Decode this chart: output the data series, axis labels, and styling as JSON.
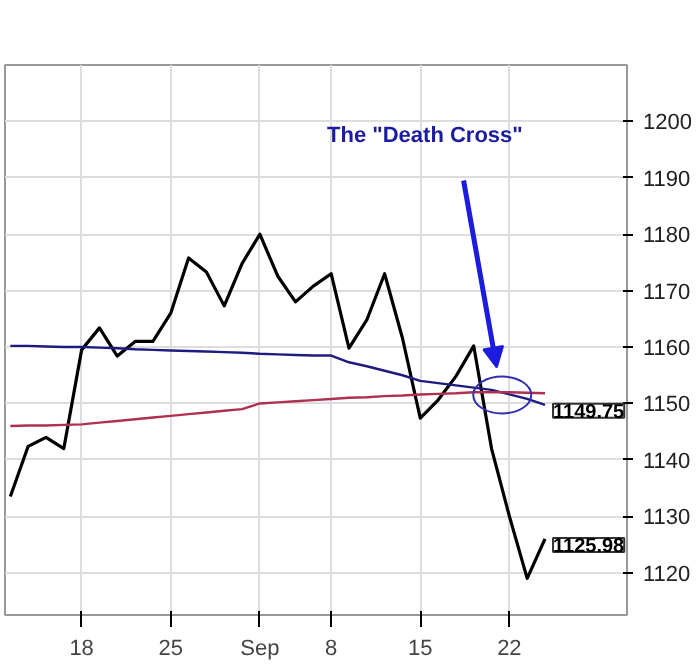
{
  "chart_data": {
    "type": "line",
    "categories": [
      null,
      null,
      null,
      null,
      "18",
      null,
      null,
      null,
      null,
      "25",
      null,
      null,
      null,
      null,
      "Sep",
      null,
      null,
      null,
      "8",
      null,
      null,
      null,
      null,
      "15",
      null,
      null,
      null,
      null,
      "22",
      null,
      null
    ],
    "series": [
      {
        "color": "#000000",
        "values": [
          1133.5,
          1142.4,
          1144,
          1142,
          1159.5,
          1163.4,
          1158.4,
          1161,
          1161,
          1166,
          1175.8,
          1173.3,
          1167.3,
          1174.8,
          1180,
          1172.6,
          1168,
          1170.8,
          1173,
          1159.8,
          1164.8,
          1173,
          1161.6,
          1147.4,
          1150.6,
          1154.8,
          1160.2,
          1142,
          1130,
          1119,
          1125.98
        ],
        "value_labels": [
          null,
          null,
          null,
          null,
          null,
          null,
          null,
          null,
          null,
          null,
          null,
          null,
          null,
          null,
          null,
          null,
          null,
          null,
          null,
          null,
          null,
          null,
          null,
          null,
          null,
          null,
          null,
          null,
          null,
          null,
          "1125.98"
        ]
      },
      {
        "color": "#1c1c80",
        "values": [
          1160.2,
          1160.2,
          1160.1,
          1160,
          1160,
          1159.9,
          1159.8,
          1159.6,
          1159.5,
          1159.4,
          1159.3,
          1159.2,
          1159.1,
          1159,
          1158.8,
          1158.7,
          1158.6,
          1158.5,
          1158.5,
          1157.3,
          1156.6,
          1155.8,
          1155,
          1154,
          1153.6,
          1153.2,
          1152.8,
          1152.4,
          1151.6,
          1150.8,
          1149.75
        ],
        "value_labels": [
          null,
          null,
          null,
          null,
          null,
          null,
          null,
          null,
          null,
          null,
          null,
          null,
          null,
          null,
          null,
          null,
          null,
          null,
          null,
          null,
          null,
          null,
          null,
          null,
          null,
          null,
          null,
          null,
          null,
          null,
          "1149.75"
        ]
      },
      {
        "color": "#b03050",
        "values": [
          1146,
          1146.1,
          1146.1,
          1146.2,
          1146.3,
          1146.6,
          1146.9,
          1147.2,
          1147.5,
          1147.8,
          1148.1,
          1148.4,
          1148.7,
          1149,
          1150,
          1150.2,
          1150.4,
          1150.6,
          1150.8,
          1151,
          1151.1,
          1151.3,
          1151.4,
          1151.6,
          1151.7,
          1151.8,
          1152,
          1152,
          1152,
          1151.9,
          1151.8
        ]
      }
    ],
    "ylim": [
      1112.5,
      1210
    ],
    "yticks": [
      1120,
      1130,
      1140,
      1150,
      1160,
      1170,
      1180,
      1190,
      1200
    ],
    "grid": true,
    "marker": "none",
    "line_style": "solid",
    "annotations": [
      "The \"Death Cross\""
    ]
  }
}
